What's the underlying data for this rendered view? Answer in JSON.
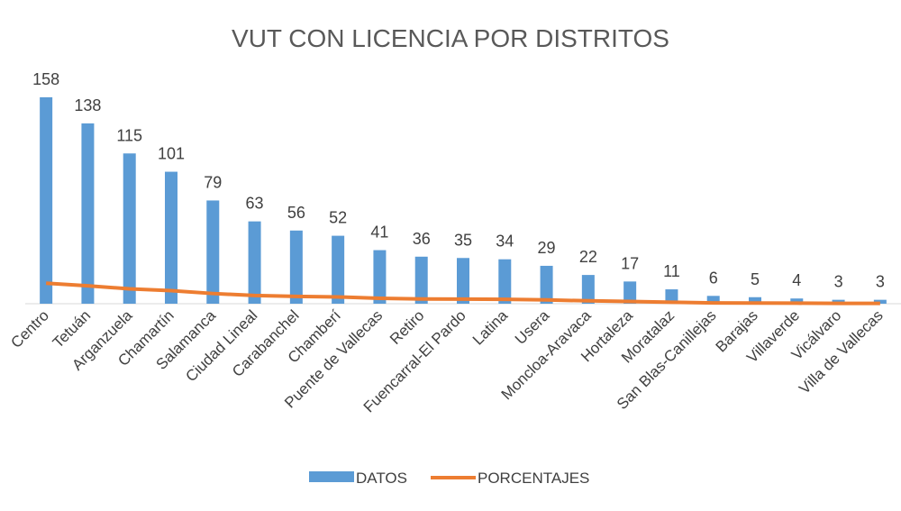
{
  "chart_data": {
    "type": "bar_line",
    "title": "VUT CON LICENCIA POR DISTRITOS",
    "categories": [
      "Centro",
      "Tetuán",
      "Arganzuela",
      "Chamartín",
      "Salamanca",
      "Ciudad Lineal",
      "Carabanchel",
      "Chamberí",
      "Puente de Vallecas",
      "Retiro",
      "Fuencarral-El Pardo",
      "Latina",
      "Usera",
      "Moncloa-Aravaca",
      "Hortaleza",
      "Moratalaz",
      "San Blas-Canillejas",
      "Barajas",
      "Villaverde",
      "Vicálvaro",
      "Villa de Vallecas"
    ],
    "series": [
      {
        "name": "DATOS",
        "type": "bar",
        "color": "#5b9bd5",
        "values": [
          158,
          138,
          115,
          101,
          79,
          63,
          56,
          52,
          41,
          36,
          35,
          34,
          29,
          22,
          17,
          11,
          6,
          5,
          4,
          3,
          3
        ]
      },
      {
        "name": "PORCENTAJES",
        "type": "line",
        "color": "#ed7d31",
        "values": [
          15.7,
          13.7,
          11.4,
          10.0,
          7.8,
          6.3,
          5.6,
          5.2,
          4.1,
          3.6,
          3.5,
          3.4,
          2.9,
          2.2,
          1.7,
          1.1,
          0.6,
          0.5,
          0.4,
          0.3,
          0.3
        ]
      }
    ],
    "ylim": [
      0,
      170
    ],
    "legend": "bottom"
  }
}
